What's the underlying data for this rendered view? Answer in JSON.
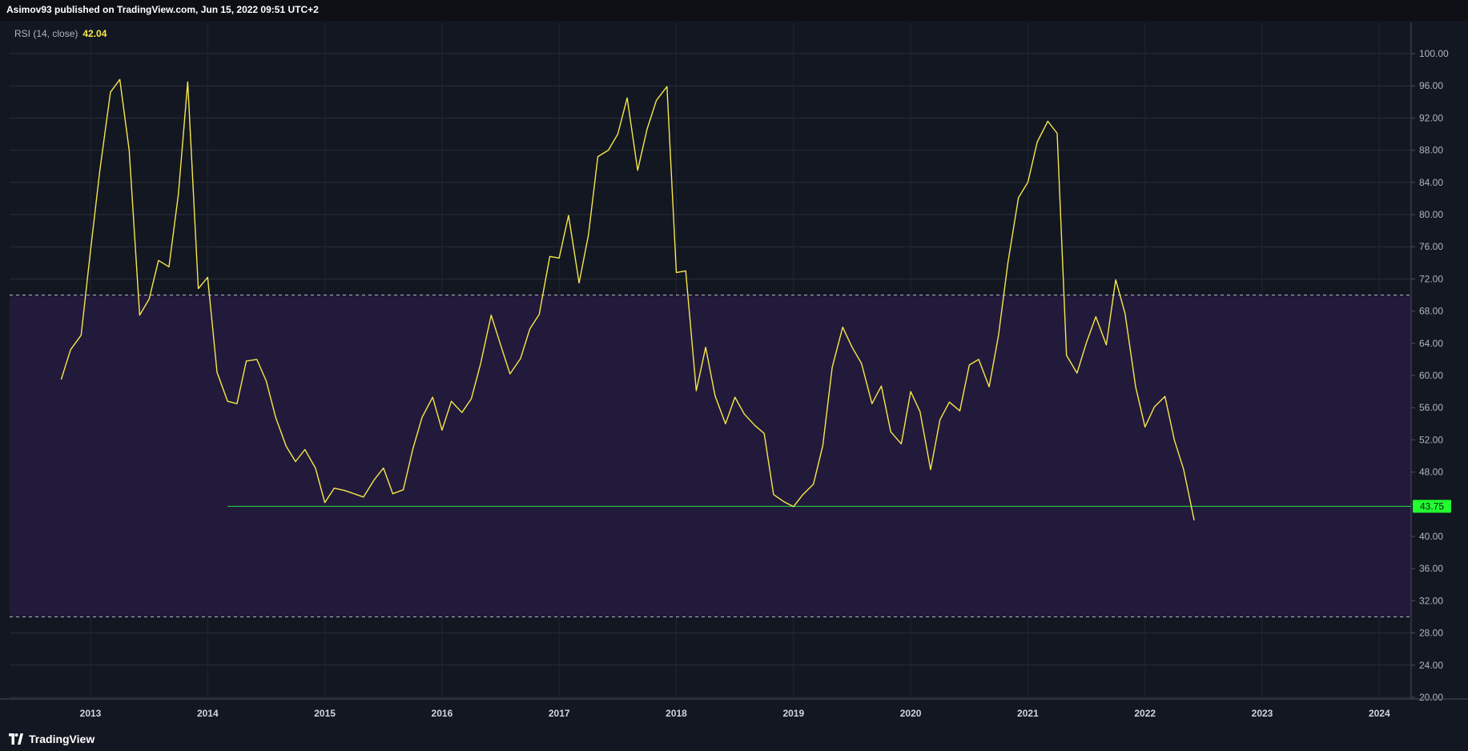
{
  "header": {
    "publish_text": "Asimov93 published on TradingView.com, Jun 15, 2022 09:51 UTC+2"
  },
  "legend": {
    "label": "RSI (14, close)",
    "value": "42.04"
  },
  "brand": {
    "name": "TradingView"
  },
  "colors": {
    "background": "#131722",
    "rsi_line": "#f7e74b",
    "band_fill": "#221a3a",
    "band_lines": "#b2b5be",
    "support_line": "#22e04a",
    "support_label_bg": "#22ff2f"
  },
  "chart_data": {
    "type": "line",
    "ylim": [
      20,
      102
    ],
    "xlim": [
      2012.6,
      2024.3
    ],
    "y_ticks": [
      "100.00",
      "96.00",
      "92.00",
      "88.00",
      "84.00",
      "80.00",
      "76.00",
      "72.00",
      "68.00",
      "64.00",
      "60.00",
      "56.00",
      "52.00",
      "48.00",
      "44.00",
      "40.00",
      "36.00",
      "32.00",
      "28.00",
      "24.00",
      "20.00"
    ],
    "x_ticks": [
      "2013",
      "2014",
      "2015",
      "2016",
      "2017",
      "2018",
      "2019",
      "2020",
      "2021",
      "2022",
      "2023",
      "2024"
    ],
    "band": {
      "upper": 70,
      "lower": 30
    },
    "support": {
      "value": 43.75,
      "label": "43.75",
      "from": 2014.17
    },
    "series": [
      {
        "x": [
          2012.75,
          2012.83,
          2012.92,
          2013.0,
          2013.08,
          2013.17,
          2013.25,
          2013.33,
          2013.42,
          2013.5,
          2013.58,
          2013.67,
          2013.75,
          2013.83,
          2013.92,
          2014.0,
          2014.08,
          2014.17,
          2014.25,
          2014.33,
          2014.42,
          2014.5,
          2014.58,
          2014.67,
          2014.75,
          2014.83,
          2014.92,
          2015.0,
          2015.08,
          2015.17,
          2015.25,
          2015.33,
          2015.42,
          2015.5,
          2015.58,
          2015.67,
          2015.75,
          2015.83,
          2015.92,
          2016.0,
          2016.08,
          2016.17,
          2016.25,
          2016.33,
          2016.42,
          2016.5,
          2016.58,
          2016.67,
          2016.75,
          2016.83,
          2016.92,
          2017.0,
          2017.08,
          2017.17,
          2017.25,
          2017.33,
          2017.42,
          2017.5,
          2017.58,
          2017.67,
          2017.75,
          2017.83,
          2017.92,
          2018.0,
          2018.08,
          2018.17,
          2018.25,
          2018.33,
          2018.42,
          2018.5,
          2018.58,
          2018.67,
          2018.75,
          2018.83,
          2018.92,
          2019.0,
          2019.08,
          2019.17,
          2019.25,
          2019.33,
          2019.42,
          2019.5,
          2019.58,
          2019.67,
          2019.75,
          2019.83,
          2019.92,
          2020.0,
          2020.08,
          2020.17,
          2020.25,
          2020.33,
          2020.42,
          2020.5,
          2020.58,
          2020.67,
          2020.75,
          2020.83,
          2020.92,
          2021.0,
          2021.08,
          2021.17,
          2021.25,
          2021.33,
          2021.42,
          2021.5,
          2021.58,
          2021.67,
          2021.75,
          2021.83,
          2021.92,
          2022.0,
          2022.08,
          2022.17,
          2022.25,
          2022.33,
          2022.42
        ],
        "values": [
          59.5,
          63.2,
          65.0,
          75.5,
          85.5,
          95.2,
          96.8,
          88.0,
          67.5,
          69.5,
          74.3,
          73.5,
          82.5,
          96.5,
          70.8,
          72.2,
          60.4,
          56.8,
          56.5,
          61.8,
          62.0,
          59.3,
          54.8,
          51.2,
          49.3,
          50.8,
          48.5,
          44.2,
          46.0,
          45.7,
          45.3,
          44.9,
          47.0,
          48.5,
          45.3,
          45.8,
          50.8,
          54.8,
          57.3,
          53.2,
          56.8,
          55.4,
          57.1,
          61.5,
          67.5,
          63.8,
          60.2,
          62.1,
          65.8,
          67.6,
          74.8,
          74.6,
          79.9,
          71.5,
          77.5,
          87.2,
          88.0,
          90.0,
          94.5,
          85.5,
          90.6,
          94.2,
          95.9,
          72.8,
          73.0,
          58.1,
          63.5,
          57.5,
          54.0,
          57.3,
          55.2,
          53.8,
          52.8,
          45.2,
          44.3,
          43.7,
          45.2,
          46.5,
          51.3,
          61.0,
          66.0,
          63.5,
          61.5,
          56.5,
          58.7,
          53.0,
          51.5,
          58.0,
          55.5,
          48.3,
          54.5,
          56.7,
          55.6,
          61.3,
          62.0,
          58.6,
          65.0,
          74.0,
          82.1,
          84.0,
          89.0,
          91.6,
          90.1,
          62.5,
          60.3,
          64.1,
          67.3,
          63.8,
          71.9,
          67.7,
          58.6,
          53.6,
          56.1,
          57.4,
          52.0,
          48.3,
          42.0
        ]
      }
    ]
  }
}
